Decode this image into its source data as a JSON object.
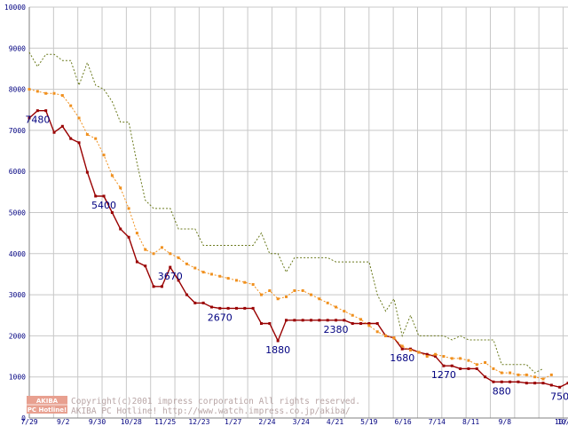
{
  "chart_data": {
    "type": "line",
    "title": "",
    "xlabel": "",
    "ylabel": "",
    "ylim": [
      0,
      10000
    ],
    "grid": true,
    "yticks": [
      0,
      1000,
      2000,
      3000,
      4000,
      5000,
      6000,
      7000,
      8000,
      9000,
      10000
    ],
    "xtick_labels": [
      "7/29",
      "9/2",
      "9/30",
      "10/28",
      "11/25",
      "12/23",
      "1/27",
      "2/24",
      "3/24",
      "4/21",
      "5/19",
      "6/16",
      "7/14",
      "8/11",
      "9/8",
      "10/6",
      "10/13"
    ],
    "x_points": 112,
    "series": [
      {
        "name": "",
        "color": "#990000",
        "style": "solid-square-markers",
        "values": [
          7300,
          7480,
          7480,
          6950,
          7100,
          6800,
          6700,
          5980,
          5400,
          5400,
          5000,
          4600,
          4400,
          3800,
          3700,
          3200,
          3200,
          3670,
          3350,
          3000,
          2800,
          2800,
          2700,
          2670,
          2670,
          2670,
          2670,
          2670,
          2300,
          2300,
          1880,
          2380,
          2380,
          2380,
          2380,
          2380,
          2380,
          2380,
          2380,
          2300,
          2300,
          2300,
          2300,
          2000,
          1950,
          1680,
          1680,
          1600,
          1550,
          1500,
          1270,
          1270,
          1200,
          1200,
          1200,
          1000,
          880,
          880,
          880,
          880,
          850,
          850,
          850,
          800,
          750,
          850
        ]
      },
      {
        "name": "",
        "color": "#f0901e",
        "style": "dotted-square-markers",
        "values": [
          8000,
          7950,
          7900,
          7900,
          7850,
          7600,
          7300,
          6900,
          6800,
          6400,
          5900,
          5600,
          5100,
          4500,
          4100,
          4000,
          4150,
          4000,
          3900,
          3750,
          3650,
          3550,
          3500,
          3450,
          3400,
          3350,
          3300,
          3250,
          3000,
          3100,
          2900,
          2950,
          3100,
          3100,
          3000,
          2900,
          2800,
          2700,
          2600,
          2500,
          2400,
          2250,
          2100,
          2000,
          1950,
          1750,
          1650,
          1600,
          1500,
          1550,
          1500,
          1450,
          1450,
          1400,
          1300,
          1350,
          1200,
          1100,
          1100,
          1050,
          1050,
          1000,
          950,
          1050
        ]
      },
      {
        "name": "",
        "color": "#6b7a1e",
        "style": "dotted",
        "values": [
          8900,
          8550,
          8850,
          8850,
          8700,
          8700,
          8100,
          8650,
          8100,
          8000,
          7700,
          7200,
          7200,
          6200,
          5300,
          5100,
          5100,
          5100,
          4600,
          4600,
          4600,
          4200,
          4200,
          4200,
          4200,
          4200,
          4200,
          4200,
          4500,
          4000,
          4000,
          3550,
          3900,
          3900,
          3900,
          3900,
          3900,
          3800,
          3800,
          3800,
          3800,
          3800,
          3000,
          2600,
          2900,
          2000,
          2500,
          2000,
          2000,
          2000,
          2000,
          1900,
          2000,
          1900,
          1900,
          1900,
          1900,
          1300,
          1300,
          1300,
          1300,
          1100,
          1200
        ]
      }
    ],
    "data_labels": [
      {
        "text": "7480",
        "series": 0,
        "point": 1
      },
      {
        "text": "5400",
        "series": 0,
        "point": 9
      },
      {
        "text": "3670",
        "series": 0,
        "point": 17
      },
      {
        "text": "2670",
        "series": 0,
        "point": 23
      },
      {
        "text": "1880",
        "series": 0,
        "point": 30
      },
      {
        "text": "2380",
        "series": 0,
        "point": 37
      },
      {
        "text": "1680",
        "series": 0,
        "point": 45
      },
      {
        "text": "1270",
        "series": 0,
        "point": 50
      },
      {
        "text": "880",
        "series": 0,
        "point": 57
      },
      {
        "text": "750",
        "series": 0,
        "point": 64
      }
    ]
  },
  "watermark": {
    "badge_top": "AKIBA",
    "badge_bottom": "PC Hotline!",
    "line1": "Copyright(c)2001 impress corporation All rights reserved.",
    "line2": "AKIBA PC Hotline!  http://www.watch.impress.co.jp/akiba/"
  },
  "colors": {
    "grid": "#c8c8c8",
    "axis": "#808080",
    "tick_text": "#000080",
    "label_text": "#000080",
    "badge": "#e8a090"
  }
}
